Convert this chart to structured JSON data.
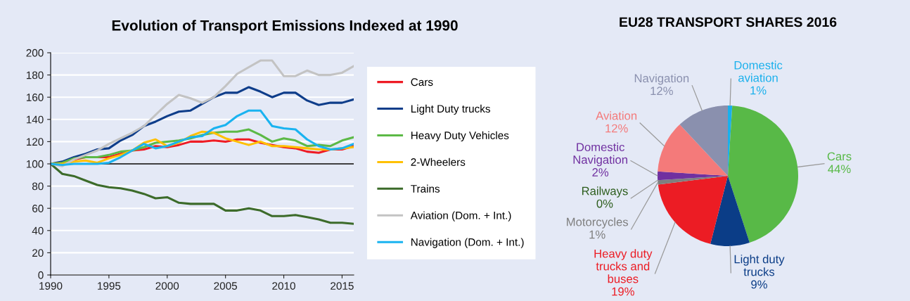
{
  "chart_data": [
    {
      "type": "line",
      "title": "Evolution of Transport Emissions Indexed at 1990",
      "x": [
        1990,
        1991,
        1992,
        1993,
        1994,
        1995,
        1996,
        1997,
        1998,
        1999,
        2000,
        2001,
        2002,
        2003,
        2004,
        2005,
        2006,
        2007,
        2008,
        2009,
        2010,
        2011,
        2012,
        2013,
        2014,
        2015,
        2016
      ],
      "series": [
        {
          "name": "Cars",
          "color": "#ee1c25",
          "values": [
            100,
            101,
            104,
            106,
            106,
            106,
            109,
            112,
            113,
            116,
            115,
            117,
            120,
            120,
            121,
            120,
            122,
            122,
            119,
            117,
            115,
            114,
            111,
            110,
            113,
            113,
            116
          ]
        },
        {
          "name": "Light Duty trucks",
          "color": "#0e3d8a",
          "values": [
            100,
            102,
            106,
            109,
            113,
            114,
            121,
            126,
            134,
            138,
            143,
            147,
            148,
            154,
            160,
            164,
            164,
            169,
            165,
            160,
            164,
            164,
            157,
            153,
            155,
            155,
            158
          ]
        },
        {
          "name": "Heavy Duty Vehicles",
          "color": "#5cb946",
          "values": [
            100,
            101,
            105,
            106,
            106,
            108,
            111,
            112,
            115,
            119,
            120,
            121,
            123,
            126,
            128,
            129,
            129,
            131,
            126,
            120,
            123,
            121,
            116,
            117,
            116,
            121,
            124
          ]
        },
        {
          "name": "2-Wheelers",
          "color": "#ffc000",
          "values": [
            100,
            100,
            102,
            103,
            101,
            105,
            108,
            112,
            119,
            122,
            116,
            119,
            125,
            129,
            128,
            123,
            120,
            117,
            120,
            116,
            116,
            115,
            114,
            113,
            113,
            114,
            115
          ]
        },
        {
          "name": "Trains",
          "color": "#3c6b2a",
          "values": [
            100,
            91,
            89,
            85,
            81,
            79,
            78,
            76,
            73,
            69,
            70,
            65,
            64,
            64,
            64,
            58,
            58,
            60,
            58,
            53,
            53,
            54,
            52,
            50,
            47,
            47,
            46
          ]
        },
        {
          "name": "Aviation (Dom. + Int.)",
          "color": "#c3c3c3",
          "values": [
            100,
            98,
            104,
            108,
            112,
            118,
            123,
            128,
            134,
            144,
            154,
            162,
            159,
            155,
            160,
            170,
            181,
            187,
            193,
            193,
            179,
            179,
            184,
            180,
            180,
            182,
            188
          ]
        },
        {
          "name": "Navigation (Dom. + Int.)",
          "color": "#1ab3f0",
          "values": [
            100,
            99,
            100,
            100,
            100,
            101,
            106,
            112,
            118,
            114,
            116,
            120,
            124,
            125,
            132,
            135,
            143,
            148,
            148,
            134,
            132,
            131,
            122,
            116,
            113,
            114,
            118
          ]
        }
      ],
      "xlim": [
        1990,
        2016
      ],
      "xticks": [
        1990,
        1995,
        2000,
        2005,
        2010,
        2015
      ],
      "ylim": [
        0,
        200
      ],
      "yticks": [
        0,
        20,
        40,
        60,
        80,
        100,
        120,
        140,
        160,
        180,
        200
      ],
      "grid": "y",
      "legend": "right",
      "ref_lines": [
        {
          "axis": "y",
          "value": 100,
          "color": "#000000"
        }
      ]
    },
    {
      "type": "pie",
      "title": "EU28 TRANSPORT SHARES 2016",
      "categories": [
        "Domestic aviation",
        "Cars",
        "Light duty trucks",
        "Heavy duty trucks and buses",
        "Motorcycles",
        "Railways",
        "Domestic Navigation",
        "Aviation",
        "Navigation"
      ],
      "values": [
        1,
        44,
        9,
        19,
        1,
        0,
        2,
        12,
        12
      ],
      "value_labels": [
        "1%",
        "44%",
        "9%",
        "19%",
        "1%",
        "0%",
        "2%",
        "12%",
        "12%"
      ],
      "colors": [
        "#1ab0ec",
        "#58b947",
        "#0b3d87",
        "#ec1c24",
        "#7f7f7f",
        "#2e5e1e",
        "#7030a0",
        "#f47a7a",
        "#8a90ae"
      ]
    }
  ]
}
